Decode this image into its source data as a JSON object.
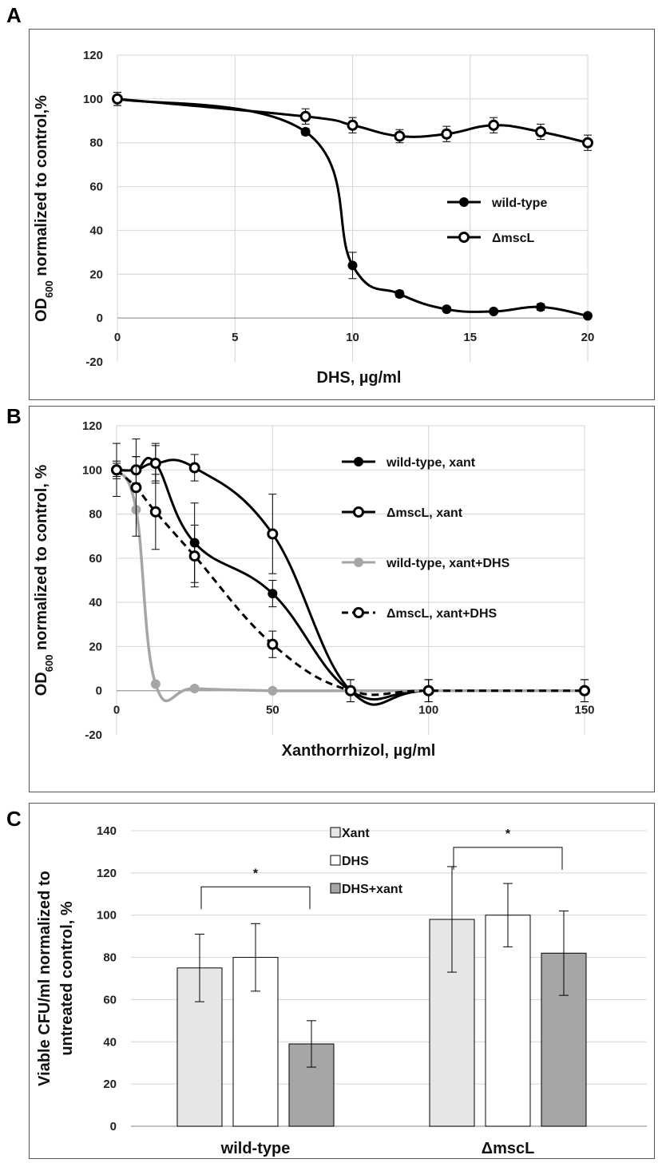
{
  "chart_data": [
    {
      "panel": "A",
      "type": "line",
      "xlabel": "DHS, µg/ml",
      "ylabel_main": "OD",
      "ylabel_sub": "600",
      "ylabel_rest": " normalized to control,%",
      "xlim": [
        0,
        20
      ],
      "ylim": [
        -20,
        120
      ],
      "xticks": [
        "0",
        "5",
        "10",
        "15",
        "20"
      ],
      "yticks": [
        "-20",
        "0",
        "20",
        "40",
        "60",
        "80",
        "100",
        "120"
      ],
      "series": [
        {
          "name": "wild-type",
          "color": "#000000",
          "marker": "filled",
          "x": [
            0,
            8,
            10,
            12,
            14,
            16,
            18,
            20
          ],
          "y": [
            100,
            85,
            24,
            11,
            4,
            3,
            5,
            1
          ],
          "err": [
            3,
            1.5,
            6,
            1.5,
            1,
            1,
            1.5,
            1
          ]
        },
        {
          "name": "ΔmscL",
          "color": "#000000",
          "marker": "open",
          "x": [
            0,
            8,
            10,
            12,
            14,
            16,
            18,
            20
          ],
          "y": [
            100,
            92,
            88,
            83,
            84,
            88,
            85,
            80
          ],
          "err": [
            3,
            3.5,
            3.5,
            3,
            3.5,
            3.5,
            3.5,
            3.5
          ]
        }
      ]
    },
    {
      "panel": "B",
      "type": "line",
      "xlabel": "Xanthorrhizol, µg/ml",
      "ylabel_main": "OD",
      "ylabel_sub": "600",
      "ylabel_rest": " normalized to control, %",
      "xlim": [
        0,
        150
      ],
      "ylim": [
        -20,
        120
      ],
      "xticks": [
        "0",
        "50",
        "100",
        "150"
      ],
      "yticks": [
        "-20",
        "0",
        "20",
        "40",
        "60",
        "80",
        "100",
        "120"
      ],
      "series": [
        {
          "name": "wild-type, xant",
          "color": "#000000",
          "marker": "filled",
          "dashed": false,
          "x": [
            0,
            6.25,
            12.5,
            25,
            50,
            75,
            100,
            150
          ],
          "y": [
            100,
            100,
            103,
            67,
            44,
            0,
            0,
            0
          ],
          "err": [
            12,
            6,
            8,
            18,
            6,
            5,
            5,
            5
          ]
        },
        {
          "name": "ΔmscL,  xant",
          "color": "#000000",
          "marker": "open",
          "dashed": false,
          "x": [
            0,
            6.25,
            12.5,
            25,
            50,
            75,
            100,
            150
          ],
          "y": [
            100,
            100,
            103,
            101,
            71,
            0,
            0,
            0
          ],
          "err": [
            3,
            6,
            9,
            6,
            18,
            5,
            5,
            5
          ]
        },
        {
          "name": "wild-type, xant+DHS",
          "color": "#a6a6a6",
          "marker": "filled",
          "dashed": false,
          "x": [
            0,
            6.25,
            12.5,
            25,
            50,
            75,
            100,
            150
          ],
          "y": [
            100,
            82,
            3,
            1,
            0,
            0,
            0,
            0
          ],
          "err": [
            0,
            0,
            0,
            0,
            0,
            0,
            0,
            0
          ]
        },
        {
          "name": "ΔmscL,  xant+DHS",
          "color": "#000000",
          "marker": "open",
          "dashed": true,
          "x": [
            0,
            6.25,
            12.5,
            25,
            50,
            75,
            100,
            150
          ],
          "y": [
            100,
            92,
            81,
            61,
            21,
            0,
            0,
            0
          ],
          "err": [
            4,
            22,
            17,
            14,
            6,
            5,
            5,
            5
          ]
        }
      ]
    },
    {
      "panel": "C",
      "type": "bar",
      "ylabel_line1": "Viable CFU/ml normalized to",
      "ylabel_line2": "untreated control, %",
      "ylim": [
        0,
        140
      ],
      "yticks": [
        "0",
        "20",
        "40",
        "60",
        "80",
        "100",
        "120",
        "140"
      ],
      "categories": [
        "wild-type",
        "ΔmscL"
      ],
      "series": [
        {
          "name": "Xant",
          "color": "#e6e6e6",
          "values": [
            75,
            98
          ],
          "err": [
            16,
            25
          ]
        },
        {
          "name": "DHS",
          "color": "#ffffff",
          "values": [
            80,
            100
          ],
          "err": [
            16,
            15
          ]
        },
        {
          "name": "DHS+xant",
          "color": "#a6a6a6",
          "values": [
            39,
            82
          ],
          "err": [
            11,
            20
          ]
        }
      ],
      "significance": [
        "*",
        "*"
      ]
    }
  ],
  "panel_labels": [
    "A",
    "B",
    "C"
  ]
}
